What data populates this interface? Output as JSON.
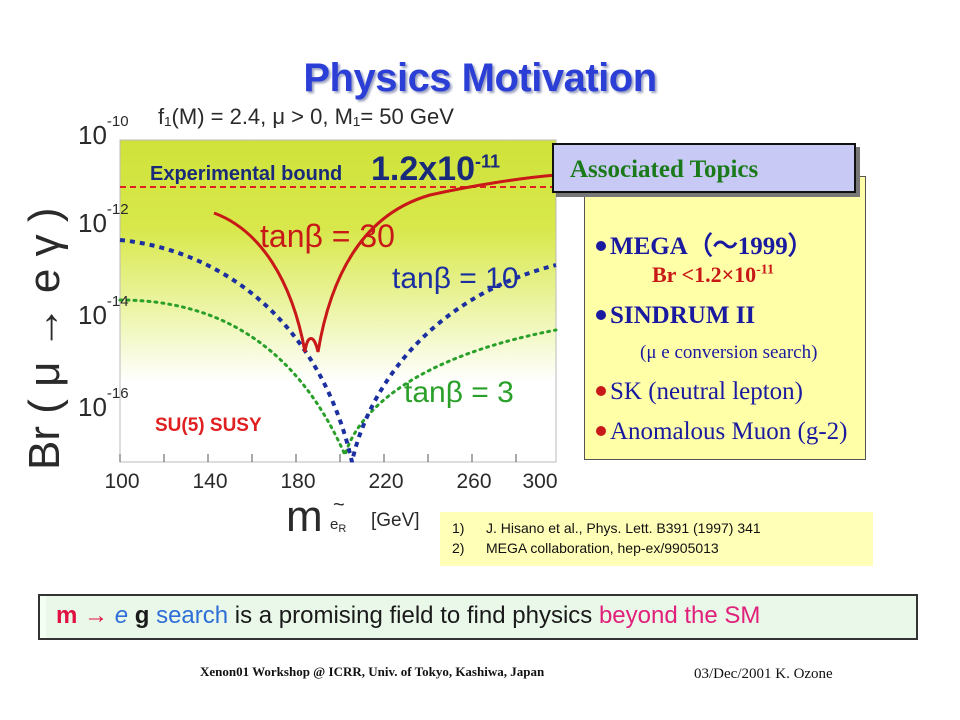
{
  "slide": {
    "title": "Physics Motivation"
  },
  "plot": {
    "header_formula": "f₁(M) = 2.4,    μ > 0,    M₁= 50 GeV",
    "ylabel": "Br ( μ → e γ )",
    "yticks": [
      {
        "base": "10",
        "exp": "-10"
      },
      {
        "base": "10",
        "exp": "-12"
      },
      {
        "base": "10",
        "exp": "-14"
      },
      {
        "base": "10",
        "exp": "-16"
      }
    ],
    "xticks": [
      "100",
      "140",
      "180",
      "220",
      "260",
      "300"
    ],
    "xlabel_main": "m",
    "xlabel_sub": "e",
    "xlabel_subsub": "R",
    "xlabel_tilde": "~",
    "xlabel_unit": "[GeV]",
    "experimental_bound_label": "Experimental bound",
    "experimental_bound_value": "1.2x10",
    "experimental_bound_exp": "-11",
    "curve_labels": {
      "tanb30": "tanβ = 30",
      "tanb10": "tanβ = 10",
      "tanb3": "tanβ = 3"
    },
    "model_label": "SU(5) SUSY",
    "colors": {
      "bound_line": "#e02020",
      "tanb30": "#c81818",
      "tanb10": "#1b2fa0",
      "tanb3": "#2aa02a",
      "bg_top": "#d6e84a",
      "label_blue": "#1b2fa0",
      "label_red": "#c81818",
      "label_green": "#2aa02a"
    }
  },
  "topics": {
    "header": "Associated Topics",
    "items": [
      {
        "text": "MEGA（～1999）",
        "color": "#1a1aa0",
        "bullet": "#1a1aa0",
        "bold": true
      },
      {
        "text": "Br <1.2×10",
        "exp": "-11",
        "color": "#c81818",
        "bold": true
      },
      {
        "text": "SINDRUM II",
        "color": "#1a1aa0",
        "bullet": "#1a1aa0",
        "bold": true
      },
      {
        "text": "(μ e conversion search)",
        "color": "#1a1aa0",
        "bold": false
      },
      {
        "text": "SK (neutral lepton)",
        "color": "#1a1aa0",
        "bullet": "#c81818",
        "bold": false
      },
      {
        "text": "Anomalous Muon (g-2)",
        "color": "#1a1aa0",
        "bullet": "#c81818",
        "bold": false
      }
    ]
  },
  "references": [
    {
      "num": "1)",
      "text": "J. Hisano et al., Phys. Lett. B391 (1997) 341"
    },
    {
      "num": "2)",
      "text": "MEGA collaboration, hep-ex/9905013"
    }
  ],
  "banner": {
    "part1": "m",
    "arrow": "→",
    "part2": "e",
    "part3": "g",
    "part4": "search",
    "part5": "is a promising field to find physics",
    "part6": "beyond the SM",
    "colors": {
      "red": "#e01040",
      "blue": "#2d6fd6",
      "dark": "#1a1a1a",
      "pink": "#e0207a"
    }
  },
  "footer": {
    "left": "Xenon01 Workshop @ ICRR, Univ. of Tokyo, Kashiwa, Japan",
    "right": "03/Dec/2001  K. Ozone"
  }
}
